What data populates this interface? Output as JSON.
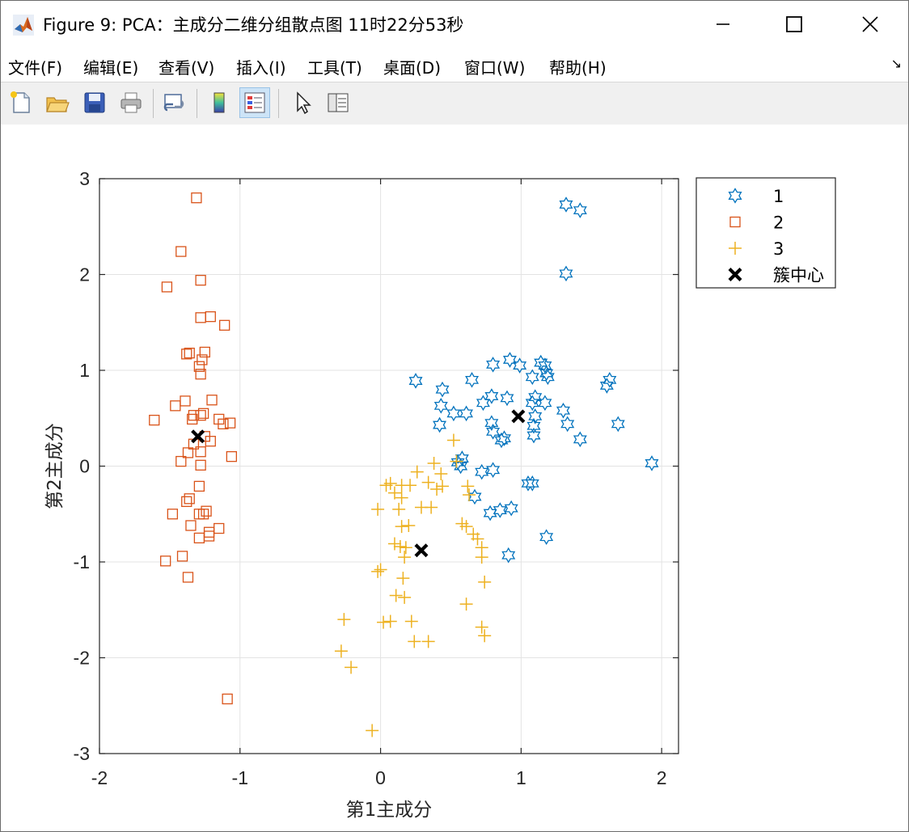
{
  "window": {
    "title": "Figure 9: PCA：主成分二维分组散点图    11时22分53秒",
    "controls": [
      "minimize-icon",
      "maximize-icon",
      "close-icon"
    ]
  },
  "menu": {
    "items": [
      "文件(F)",
      "编辑(E)",
      "查看(V)",
      "插入(I)",
      "工具(T)",
      "桌面(D)",
      "窗口(W)",
      "帮助(H)"
    ],
    "overflow": "↘"
  },
  "toolbar": {
    "buttons": [
      "new-figure-icon",
      "open-file-icon",
      "save-icon",
      "print-icon",
      "link-plot-icon",
      "colorbar-icon",
      "legend-icon",
      "pointer-icon",
      "property-inspector-icon"
    ]
  },
  "colors": {
    "series1": "#0072BD",
    "series2": "#D95319",
    "series3": "#EDB120",
    "centroid": "#000000",
    "grid": "#e3e3e3"
  },
  "chart_data": {
    "type": "scatter",
    "title": "",
    "xlabel": "第1主成分",
    "ylabel": "第2主成分",
    "xlim": [
      -2,
      2.12
    ],
    "ylim": [
      -3,
      3
    ],
    "xticks": [
      -2,
      -1,
      0,
      1,
      2
    ],
    "yticks": [
      -3,
      -2,
      -1,
      0,
      1,
      2,
      3
    ],
    "grid": true,
    "legend": "outside-top-right",
    "series": [
      {
        "name": "1",
        "marker": "hexagram",
        "color": "#0072BD",
        "points": [
          [
            1.32,
            2.73
          ],
          [
            1.42,
            2.67
          ],
          [
            1.32,
            2.01
          ],
          [
            0.25,
            0.89
          ],
          [
            0.65,
            0.9
          ],
          [
            0.92,
            1.11
          ],
          [
            0.99,
            1.05
          ],
          [
            0.8,
            1.06
          ],
          [
            1.14,
            1.08
          ],
          [
            1.17,
            1.05
          ],
          [
            1.18,
            0.97
          ],
          [
            1.19,
            0.93
          ],
          [
            1.08,
            0.93
          ],
          [
            1.63,
            0.9
          ],
          [
            1.61,
            0.84
          ],
          [
            0.44,
            0.8
          ],
          [
            0.79,
            0.73
          ],
          [
            0.73,
            0.66
          ],
          [
            0.9,
            0.71
          ],
          [
            1.1,
            0.72
          ],
          [
            1.08,
            0.66
          ],
          [
            1.17,
            0.66
          ],
          [
            0.43,
            0.63
          ],
          [
            0.52,
            0.55
          ],
          [
            0.61,
            0.55
          ],
          [
            1.3,
            0.58
          ],
          [
            1.1,
            0.52
          ],
          [
            1.09,
            0.42
          ],
          [
            1.33,
            0.44
          ],
          [
            1.69,
            0.44
          ],
          [
            0.42,
            0.43
          ],
          [
            0.79,
            0.45
          ],
          [
            0.8,
            0.36
          ],
          [
            0.86,
            0.27
          ],
          [
            0.88,
            0.29
          ],
          [
            1.09,
            0.32
          ],
          [
            1.42,
            0.28
          ],
          [
            0.55,
            0.04
          ],
          [
            0.58,
            0.08
          ],
          [
            0.57,
            0.0
          ],
          [
            1.93,
            0.03
          ],
          [
            0.72,
            -0.06
          ],
          [
            0.8,
            -0.04
          ],
          [
            1.05,
            -0.18
          ],
          [
            1.08,
            -0.18
          ],
          [
            0.67,
            -0.32
          ],
          [
            0.78,
            -0.49
          ],
          [
            0.85,
            -0.46
          ],
          [
            0.93,
            -0.44
          ],
          [
            1.18,
            -0.74
          ],
          [
            0.91,
            -0.93
          ]
        ]
      },
      {
        "name": "2",
        "marker": "square",
        "color": "#D95319",
        "points": [
          [
            -1.31,
            2.8
          ],
          [
            -1.42,
            2.24
          ],
          [
            -1.52,
            1.87
          ],
          [
            -1.28,
            1.94
          ],
          [
            -1.28,
            1.55
          ],
          [
            -1.21,
            1.56
          ],
          [
            -1.11,
            1.47
          ],
          [
            -1.38,
            1.17
          ],
          [
            -1.36,
            1.18
          ],
          [
            -1.25,
            1.19
          ],
          [
            -1.27,
            1.11
          ],
          [
            -1.29,
            1.04
          ],
          [
            -1.28,
            0.96
          ],
          [
            -1.2,
            0.69
          ],
          [
            -1.39,
            0.68
          ],
          [
            -1.46,
            0.63
          ],
          [
            -1.26,
            0.55
          ],
          [
            -1.28,
            0.53
          ],
          [
            -1.34,
            0.49
          ],
          [
            -1.33,
            0.53
          ],
          [
            -1.15,
            0.49
          ],
          [
            -1.12,
            0.44
          ],
          [
            -1.07,
            0.45
          ],
          [
            -1.61,
            0.48
          ],
          [
            -1.25,
            0.31
          ],
          [
            -1.21,
            0.26
          ],
          [
            -1.33,
            0.23
          ],
          [
            -1.28,
            0.15
          ],
          [
            -1.37,
            0.14
          ],
          [
            -1.42,
            0.05
          ],
          [
            -1.06,
            0.1
          ],
          [
            -1.28,
            0.01
          ],
          [
            -1.29,
            -0.21
          ],
          [
            -1.36,
            -0.34
          ],
          [
            -1.38,
            -0.37
          ],
          [
            -1.48,
            -0.5
          ],
          [
            -1.24,
            -0.47
          ],
          [
            -1.26,
            -0.5
          ],
          [
            -1.29,
            -0.5
          ],
          [
            -1.35,
            -0.62
          ],
          [
            -1.15,
            -0.65
          ],
          [
            -1.22,
            -0.69
          ],
          [
            -1.22,
            -0.73
          ],
          [
            -1.29,
            -0.75
          ],
          [
            -1.41,
            -0.94
          ],
          [
            -1.53,
            -0.99
          ],
          [
            -1.37,
            -1.16
          ],
          [
            -1.09,
            -2.43
          ]
        ]
      },
      {
        "name": "3",
        "marker": "plus",
        "color": "#EDB120",
        "points": [
          [
            0.52,
            0.27
          ],
          [
            0.54,
            0.05
          ],
          [
            0.38,
            0.03
          ],
          [
            0.26,
            -0.06
          ],
          [
            0.43,
            -0.08
          ],
          [
            0.04,
            -0.2
          ],
          [
            0.07,
            -0.18
          ],
          [
            0.15,
            -0.2
          ],
          [
            0.21,
            -0.2
          ],
          [
            0.34,
            -0.17
          ],
          [
            0.4,
            -0.24
          ],
          [
            0.44,
            -0.21
          ],
          [
            0.62,
            -0.21
          ],
          [
            0.1,
            -0.28
          ],
          [
            0.15,
            -0.33
          ],
          [
            0.63,
            -0.3
          ],
          [
            -0.02,
            -0.45
          ],
          [
            0.13,
            -0.45
          ],
          [
            0.29,
            -0.43
          ],
          [
            0.36,
            -0.43
          ],
          [
            0.58,
            -0.6
          ],
          [
            0.61,
            -0.63
          ],
          [
            0.15,
            -0.63
          ],
          [
            0.2,
            -0.62
          ],
          [
            0.66,
            -0.71
          ],
          [
            0.69,
            -0.76
          ],
          [
            0.1,
            -0.81
          ],
          [
            0.14,
            -0.84
          ],
          [
            0.18,
            -0.85
          ],
          [
            0.72,
            -0.85
          ],
          [
            0.17,
            -0.95
          ],
          [
            0.72,
            -0.95
          ],
          [
            0.0,
            -1.08
          ],
          [
            -0.02,
            -1.1
          ],
          [
            0.16,
            -1.17
          ],
          [
            0.11,
            -1.35
          ],
          [
            0.17,
            -1.37
          ],
          [
            0.74,
            -1.21
          ],
          [
            0.61,
            -1.44
          ],
          [
            -0.26,
            -1.6
          ],
          [
            0.02,
            -1.63
          ],
          [
            0.07,
            -1.62
          ],
          [
            0.22,
            -1.62
          ],
          [
            0.72,
            -1.68
          ],
          [
            0.74,
            -1.77
          ],
          [
            -0.28,
            -1.93
          ],
          [
            -0.21,
            -2.1
          ],
          [
            0.24,
            -1.83
          ],
          [
            0.34,
            -1.83
          ],
          [
            -0.06,
            -2.76
          ]
        ]
      },
      {
        "name": "簇中心",
        "marker": "x",
        "color": "#000000",
        "points": [
          [
            0.98,
            0.52
          ],
          [
            -1.3,
            0.31
          ],
          [
            0.29,
            -0.88
          ]
        ]
      }
    ]
  }
}
